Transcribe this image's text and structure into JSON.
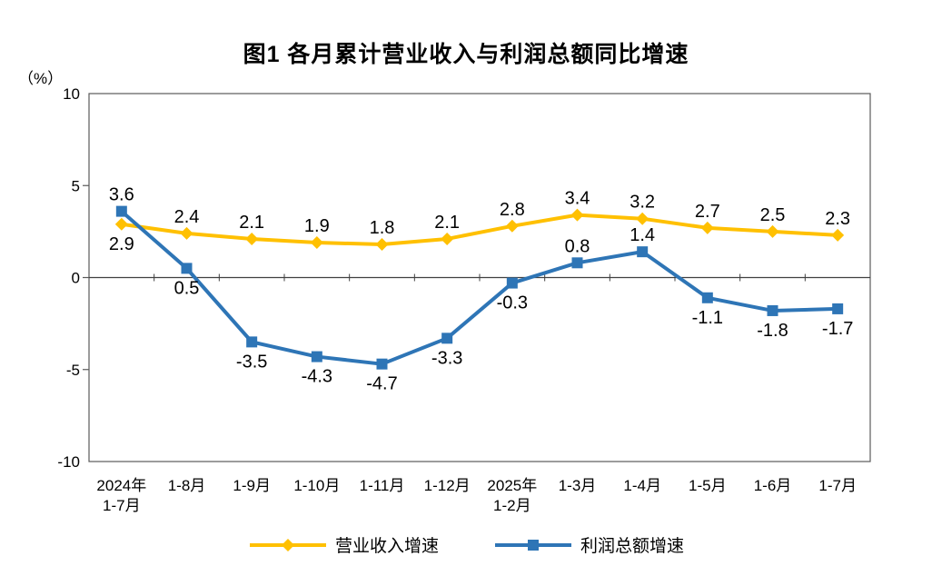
{
  "chart_data": {
    "type": "line",
    "title": "图1 各月累计营业收入与利润总额同比增速",
    "y_unit_label": "（%）",
    "ylim": [
      -10,
      10
    ],
    "yticks": [
      10,
      5,
      0,
      -5,
      -10
    ],
    "grid": false,
    "legend_position": "bottom",
    "axis_color": "#595959",
    "zero_line_color": "#404040",
    "categories": [
      [
        "2024年",
        "1-7月"
      ],
      [
        "1-8月"
      ],
      [
        "1-9月"
      ],
      [
        "1-10月"
      ],
      [
        "1-11月"
      ],
      [
        "1-12月"
      ],
      [
        "2025年",
        "1-2月"
      ],
      [
        "1-3月"
      ],
      [
        "1-4月"
      ],
      [
        "1-5月"
      ],
      [
        "1-6月"
      ],
      [
        "1-7月"
      ]
    ],
    "series": [
      {
        "id": "revenue-growth",
        "name": "营业收入增速",
        "color": "#FFC000",
        "marker": "diamond",
        "values": [
          2.9,
          2.4,
          2.1,
          1.9,
          1.8,
          2.1,
          2.8,
          3.4,
          3.2,
          2.7,
          2.5,
          2.3
        ],
        "labels": [
          "2.9",
          "2.4",
          "2.1",
          "1.9",
          "1.8",
          "2.1",
          "2.8",
          "3.4",
          "3.2",
          "2.7",
          "2.5",
          "2.3"
        ],
        "label_side": [
          "below",
          "above",
          "above",
          "above",
          "above",
          "above",
          "above",
          "above",
          "above",
          "above",
          "above",
          "above"
        ]
      },
      {
        "id": "profit-growth",
        "name": "利润总额增速",
        "color": "#2E75B6",
        "marker": "square",
        "values": [
          3.6,
          0.5,
          -3.5,
          -4.3,
          -4.7,
          -3.3,
          -0.3,
          0.8,
          1.4,
          -1.1,
          -1.8,
          -1.7
        ],
        "labels": [
          "3.6",
          "0.5",
          "-3.5",
          "-4.3",
          "-4.7",
          "-3.3",
          "-0.3",
          "0.8",
          "1.4",
          "-1.1",
          "-1.8",
          "-1.7"
        ],
        "label_side": [
          "above",
          "below",
          "below",
          "below",
          "below",
          "below",
          "below",
          "above",
          "above",
          "below",
          "below",
          "below"
        ]
      }
    ]
  }
}
